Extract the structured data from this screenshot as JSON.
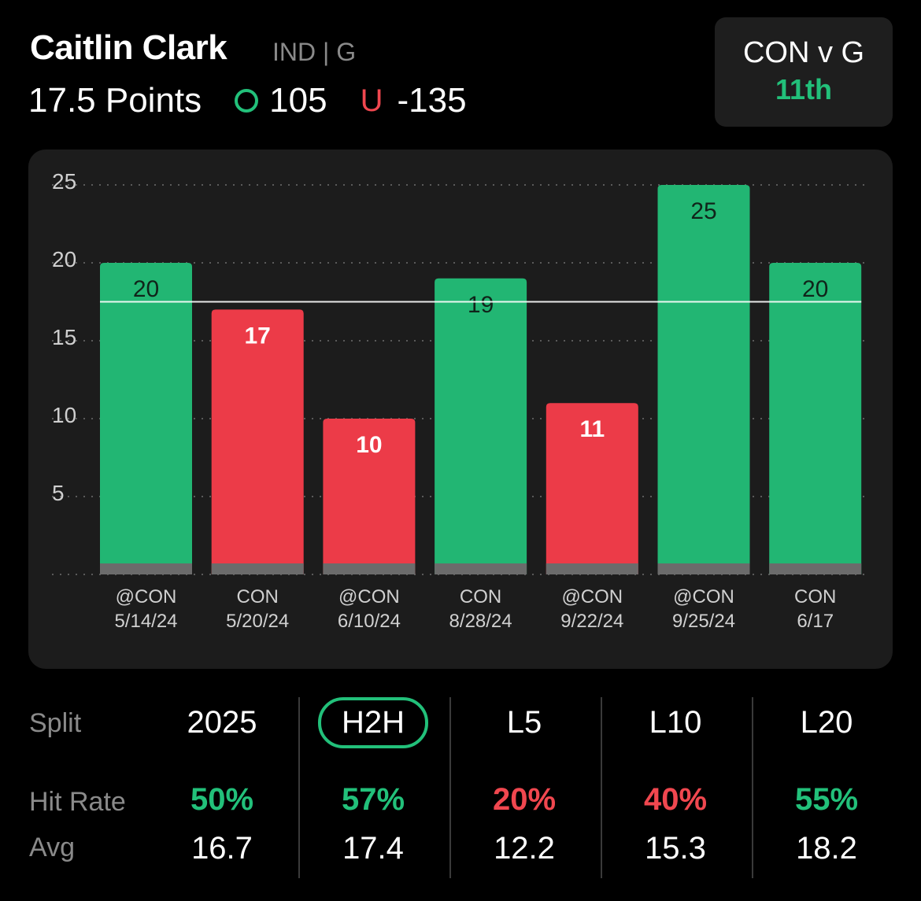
{
  "header": {
    "player": "Caitlin Clark",
    "team_pos": "IND | G",
    "prop": "17.5 Points",
    "over_odds": "105",
    "under_label": "U",
    "under_odds": "-135"
  },
  "matchup": {
    "title": "CON v G",
    "rank": "11th"
  },
  "chart_data": {
    "type": "bar",
    "categories": [
      "@CON 5/14/24",
      "CON 5/20/24",
      "@CON 6/10/24",
      "CON 8/28/24",
      "@CON 9/22/24",
      "@CON 9/25/24",
      "CON 6/17"
    ],
    "values": [
      20,
      17,
      10,
      19,
      11,
      25,
      20
    ],
    "line": 17.5,
    "yticks": [
      5,
      10,
      15,
      20,
      25
    ],
    "ylim": [
      0,
      25
    ],
    "grid": true,
    "colors": {
      "over": "#22b673",
      "under": "#ec3b48",
      "line": "#ffffff"
    }
  },
  "stats": {
    "split_label": "Split",
    "hit_label": "Hit Rate",
    "avg_label": "Avg",
    "columns": [
      {
        "split": "2025",
        "hit": "50%",
        "avg": "16.7",
        "hit_color": "green",
        "active": false
      },
      {
        "split": "H2H",
        "hit": "57%",
        "avg": "17.4",
        "hit_color": "green",
        "active": true
      },
      {
        "split": "L5",
        "hit": "20%",
        "avg": "12.2",
        "hit_color": "red",
        "active": false
      },
      {
        "split": "L10",
        "hit": "40%",
        "avg": "15.3",
        "hit_color": "red",
        "active": false
      },
      {
        "split": "L20",
        "hit": "55%",
        "avg": "18.2",
        "hit_color": "green",
        "active": false
      }
    ]
  }
}
